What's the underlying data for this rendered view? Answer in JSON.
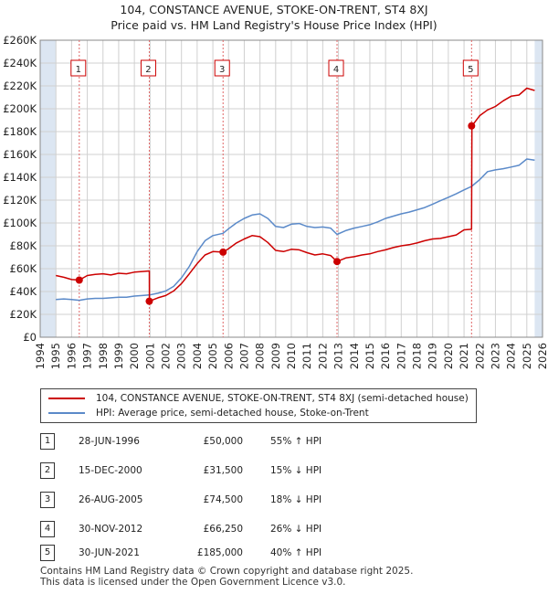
{
  "header": {
    "title": "104, CONSTANCE AVENUE, STOKE-ON-TRENT, ST4 8XJ",
    "subtitle": "Price paid vs. HM Land Registry's House Price Index (HPI)"
  },
  "legend": {
    "property_label": "104, CONSTANCE AVENUE, STOKE-ON-TRENT, ST4 8XJ (semi-detached house)",
    "hpi_label": "HPI: Average price, semi-detached house, Stoke-on-Trent"
  },
  "transactions": [
    {
      "num": "1",
      "date": "28-JUN-1996",
      "price": "£50,000",
      "hpi": "55% ↑ HPI"
    },
    {
      "num": "2",
      "date": "15-DEC-2000",
      "price": "£31,500",
      "hpi": "15% ↓ HPI"
    },
    {
      "num": "3",
      "date": "26-AUG-2005",
      "price": "£74,500",
      "hpi": "18% ↓ HPI"
    },
    {
      "num": "4",
      "date": "30-NOV-2012",
      "price": "£66,250",
      "hpi": "26% ↓ HPI"
    },
    {
      "num": "5",
      "date": "30-JUN-2021",
      "price": "£185,000",
      "hpi": "40% ↑ HPI"
    }
  ],
  "footer": {
    "line1": "Contains HM Land Registry data © Crown copyright and database right 2025.",
    "line2": "This data is licensed under the Open Government Licence v3.0."
  },
  "colors": {
    "property": "#cc0000",
    "hpi": "#5b8ac9",
    "shade": "#dce6f2",
    "grid": "#d0d0d0"
  },
  "chart_data": {
    "type": "line",
    "title": "104, CONSTANCE AVENUE, STOKE-ON-TRENT, ST4 8XJ",
    "subtitle": "Price paid vs. HM Land Registry's House Price Index (HPI)",
    "xlabel": "",
    "ylabel": "",
    "xlim": [
      1994,
      2026
    ],
    "ylim": [
      0,
      260000
    ],
    "grid": true,
    "x_ticks": [
      "1994",
      "1995",
      "1996",
      "1997",
      "1998",
      "1999",
      "2000",
      "2001",
      "2002",
      "2003",
      "2004",
      "2005",
      "2006",
      "2007",
      "2008",
      "2009",
      "2010",
      "2011",
      "2012",
      "2013",
      "2014",
      "2015",
      "2016",
      "2017",
      "2018",
      "2019",
      "2020",
      "2021",
      "2022",
      "2023",
      "2024",
      "2025",
      "2026"
    ],
    "y_ticks": [
      0,
      20000,
      40000,
      60000,
      80000,
      100000,
      120000,
      140000,
      160000,
      180000,
      200000,
      220000,
      240000,
      260000
    ],
    "y_tick_labels": [
      "£0",
      "£20K",
      "£40K",
      "£60K",
      "£80K",
      "£100K",
      "£120K",
      "£140K",
      "£160K",
      "£180K",
      "£200K",
      "£220K",
      "£240K",
      "£260K"
    ],
    "shaded_ranges": [
      [
        1994,
        1995
      ],
      [
        2025.5,
        2026
      ]
    ],
    "series": [
      {
        "name": "104, CONSTANCE AVENUE, STOKE-ON-TRENT, ST4 8XJ (semi-detached house)",
        "color": "#cc0000",
        "x": [
          1995.0,
          1995.5,
          1996.0,
          1996.49,
          1997.0,
          1997.5,
          1998.0,
          1998.5,
          1999.0,
          1999.5,
          2000.0,
          2000.5,
          2000.95,
          2000.96,
          2001.5,
          2002.0,
          2002.5,
          2003.0,
          2003.5,
          2004.0,
          2004.5,
          2005.0,
          2005.65,
          2006.0,
          2006.5,
          2007.0,
          2007.5,
          2008.0,
          2008.5,
          2009.0,
          2009.5,
          2010.0,
          2010.5,
          2011.0,
          2011.5,
          2012.0,
          2012.5,
          2012.91,
          2013.5,
          2014.0,
          2014.5,
          2015.0,
          2015.5,
          2016.0,
          2016.5,
          2017.0,
          2017.5,
          2018.0,
          2018.5,
          2019.0,
          2019.5,
          2020.0,
          2020.5,
          2021.0,
          2021.48,
          2021.5,
          2022.0,
          2022.5,
          2023.0,
          2023.5,
          2024.0,
          2024.5,
          2025.0,
          2025.5
        ],
        "y": [
          54000,
          52500,
          50500,
          50000,
          54000,
          55000,
          55500,
          54500,
          56000,
          55500,
          57000,
          57500,
          58000,
          31500,
          34500,
          36500,
          40500,
          47000,
          55500,
          64500,
          72000,
          75000,
          74500,
          77500,
          82500,
          86000,
          89000,
          88000,
          83000,
          76000,
          75000,
          77000,
          76500,
          74000,
          72000,
          73000,
          71500,
          66250,
          69500,
          70500,
          72000,
          73000,
          75000,
          76500,
          78500,
          80000,
          81000,
          82500,
          84500,
          86000,
          86500,
          88000,
          89500,
          94000,
          94500,
          185000,
          194000,
          199000,
          202000,
          207000,
          211000,
          212000,
          218000,
          216000
        ]
      },
      {
        "name": "HPI: Average price, semi-detached house, Stoke-on-Trent",
        "color": "#5b8ac9",
        "x": [
          1995.0,
          1995.5,
          1996.0,
          1996.49,
          1997.0,
          1997.5,
          1998.0,
          1998.5,
          1999.0,
          1999.5,
          2000.0,
          2000.5,
          2000.95,
          2001.5,
          2002.0,
          2002.5,
          2003.0,
          2003.5,
          2004.0,
          2004.5,
          2005.0,
          2005.65,
          2006.0,
          2006.5,
          2007.0,
          2007.5,
          2008.0,
          2008.5,
          2009.0,
          2009.5,
          2010.0,
          2010.5,
          2011.0,
          2011.5,
          2012.0,
          2012.5,
          2012.91,
          2013.5,
          2014.0,
          2014.5,
          2015.0,
          2015.5,
          2016.0,
          2016.5,
          2017.0,
          2017.5,
          2018.0,
          2018.5,
          2019.0,
          2019.5,
          2020.0,
          2020.5,
          2021.0,
          2021.48,
          2022.0,
          2022.5,
          2023.0,
          2023.5,
          2024.0,
          2024.5,
          2025.0,
          2025.5
        ],
        "y": [
          33000,
          33500,
          33000,
          32300,
          33500,
          34000,
          34000,
          34500,
          35000,
          35000,
          36000,
          36500,
          37000,
          38500,
          40500,
          44500,
          52000,
          62000,
          75000,
          84500,
          89000,
          91000,
          95000,
          100000,
          104000,
          107000,
          108000,
          104000,
          97000,
          96000,
          99000,
          99500,
          97000,
          96000,
          96500,
          95500,
          90000,
          93500,
          95500,
          97000,
          98500,
          101000,
          104000,
          106000,
          108000,
          109500,
          111500,
          113500,
          116500,
          119500,
          122500,
          125500,
          129000,
          132000,
          138000,
          145000,
          146500,
          147500,
          149000,
          150500,
          156000,
          155000
        ]
      }
    ],
    "sale_points": [
      {
        "label": "1",
        "x": 1996.49,
        "y": 50000
      },
      {
        "label": "2",
        "x": 2000.95,
        "y": 31500
      },
      {
        "label": "3",
        "x": 2005.65,
        "y": 74500
      },
      {
        "label": "4",
        "x": 2012.91,
        "y": 66250
      },
      {
        "label": "5",
        "x": 2021.48,
        "y": 185000
      }
    ]
  }
}
